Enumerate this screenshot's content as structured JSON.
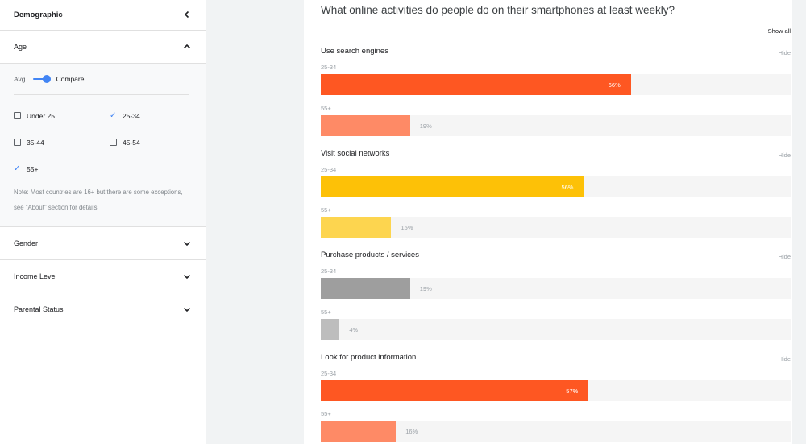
{
  "sidebar": {
    "title": "Demographic",
    "sections": {
      "age": {
        "label": "Age"
      },
      "gender": {
        "label": "Gender"
      },
      "income": {
        "label": "Income Level"
      },
      "parental": {
        "label": "Parental Status"
      }
    },
    "toggle": {
      "left_label": "Avg",
      "right_label": "Compare",
      "state": "compare"
    },
    "age_options": [
      {
        "label": "Under 25",
        "checked": false
      },
      {
        "label": "25-34",
        "checked": true
      },
      {
        "label": "35-44",
        "checked": false
      },
      {
        "label": "45-54",
        "checked": false
      },
      {
        "label": "55+",
        "checked": true
      }
    ],
    "note": "Note: Most countries are 16+ but there are some exceptions, see \"About\" section for details"
  },
  "main": {
    "question": "What online activities do people do on their smartphones at least weekly?",
    "show_all": "Show all",
    "hide_label": "Hide",
    "groups": [
      {
        "title": "Use search engines",
        "rows": [
          {
            "age": "25-34",
            "value": 66,
            "label": "66%",
            "color": "#fe5722"
          },
          {
            "age": "55+",
            "value": 19,
            "label": "19%",
            "color": "#fe8a66"
          }
        ]
      },
      {
        "title": "Visit social networks",
        "rows": [
          {
            "age": "25-34",
            "value": 56,
            "label": "56%",
            "color": "#fdc107"
          },
          {
            "age": "55+",
            "value": 15,
            "label": "15%",
            "color": "#fdd54f"
          }
        ]
      },
      {
        "title": "Purchase products / services",
        "rows": [
          {
            "age": "25-34",
            "value": 19,
            "label": "19%",
            "color": "#9e9e9e"
          },
          {
            "age": "55+",
            "value": 4,
            "label": "4%",
            "color": "#bdbdbd"
          }
        ]
      },
      {
        "title": "Look for product information",
        "rows": [
          {
            "age": "25-34",
            "value": 57,
            "label": "57%",
            "color": "#fe5722"
          },
          {
            "age": "55+",
            "value": 16,
            "label": "16%",
            "color": "#fe8a66"
          }
        ]
      }
    ]
  },
  "chart_data": {
    "type": "bar",
    "title": "What online activities do people do on their smartphones at least weekly?",
    "categories": [
      "Use search engines",
      "Visit social networks",
      "Purchase products / services",
      "Look for product information"
    ],
    "series": [
      {
        "name": "25-34",
        "values": [
          66,
          56,
          19,
          57
        ]
      },
      {
        "name": "55+",
        "values": [
          19,
          15,
          4,
          16
        ]
      }
    ],
    "ylim": [
      0,
      100
    ]
  }
}
